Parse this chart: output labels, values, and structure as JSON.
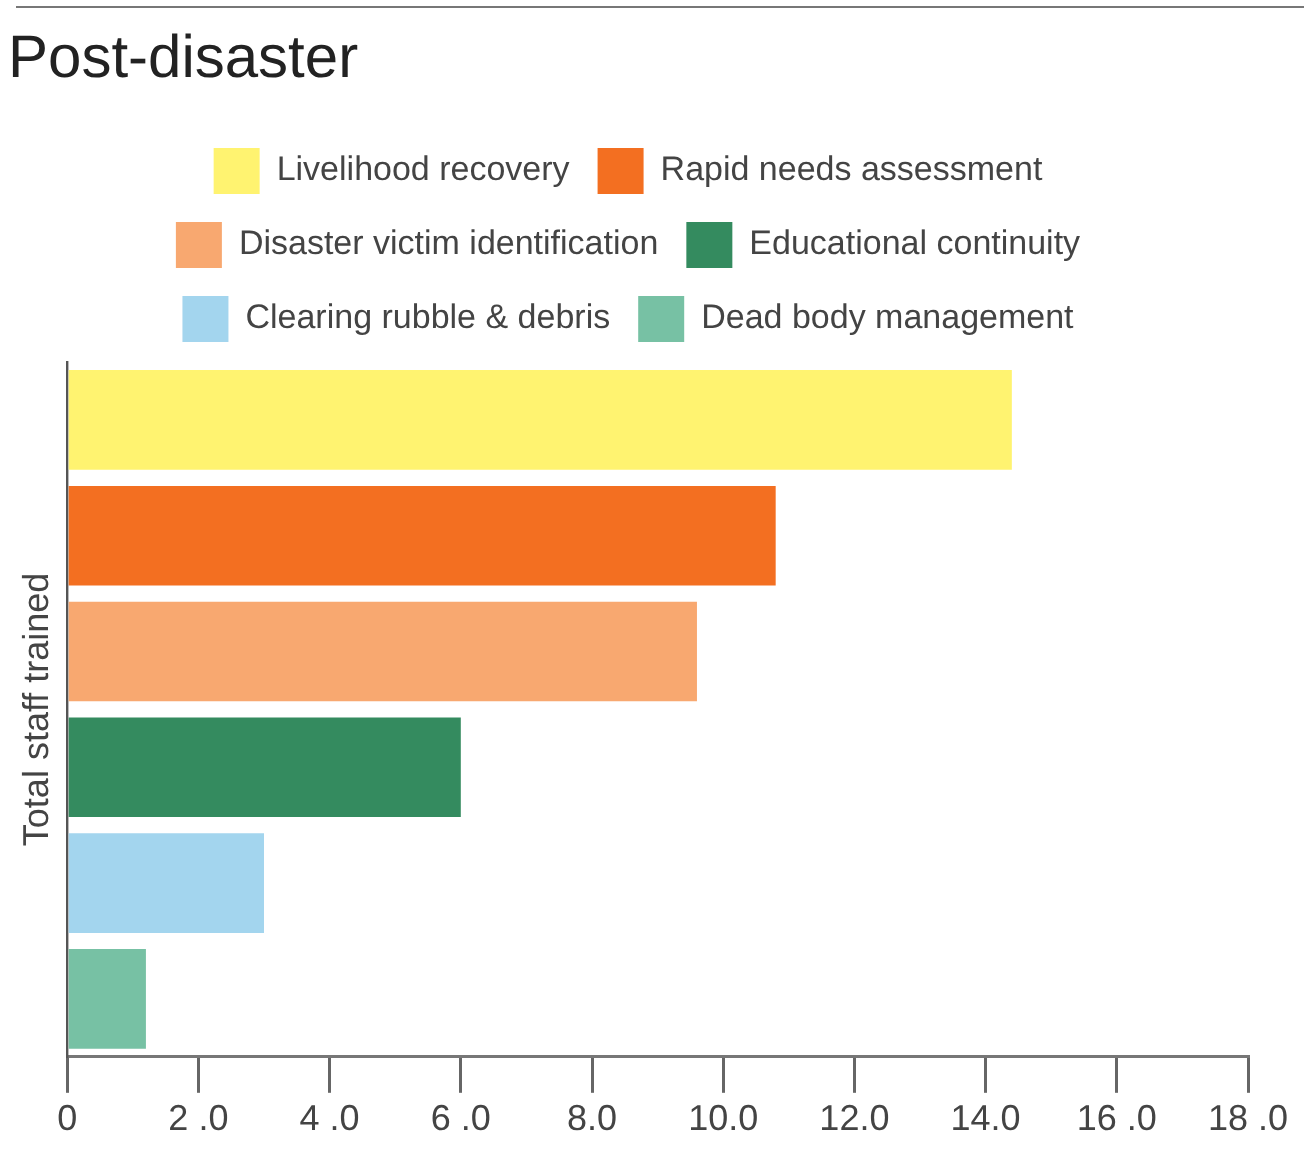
{
  "chart_data": {
    "type": "bar",
    "orientation": "horizontal",
    "title": "Post-disaster",
    "ylabel": "Total staff trained",
    "categories": [
      null,
      null,
      null,
      null,
      null,
      null
    ],
    "series": [
      {
        "name": "Livelihood recovery",
        "color": "#fff370",
        "values": [
          14.4,
          null,
          null,
          null,
          null,
          null
        ]
      },
      {
        "name": "Rapid needs assessment",
        "color": "#f36f21",
        "values": [
          null,
          10.8,
          null,
          null,
          null,
          null
        ]
      },
      {
        "name": "Disaster victim identification",
        "color": "#f8a870",
        "values": [
          null,
          null,
          9.6,
          null,
          null,
          null
        ]
      },
      {
        "name": "Educational continuity",
        "color": "#348b5f",
        "values": [
          null,
          null,
          null,
          6.0,
          null,
          null
        ]
      },
      {
        "name": "Clearing rubble & debris",
        "color": "#a3d5ee",
        "values": [
          null,
          null,
          null,
          null,
          3.0,
          null
        ]
      },
      {
        "name": "Dead body management",
        "color": "#77c1a4",
        "values": [
          null,
          null,
          null,
          null,
          null,
          1.2
        ]
      }
    ],
    "xlim": [
      0,
      18
    ],
    "xticks": [
      0,
      {
        "value": 2,
        "label": "2 .0"
      },
      {
        "value": 4,
        "label": "4 .0"
      },
      {
        "value": 6,
        "label": "6 .0"
      },
      {
        "value": 8,
        "label": "8.0"
      },
      {
        "value": 10,
        "label": "10.0"
      },
      {
        "value": 12,
        "label": "12.0"
      },
      {
        "value": 14,
        "label": "14.0"
      },
      {
        "value": 16,
        "label": "16 .0"
      },
      {
        "value": 18,
        "label": "18 .0"
      }
    ],
    "tick_labels": "x",
    "legend": "top",
    "grid": false
  }
}
